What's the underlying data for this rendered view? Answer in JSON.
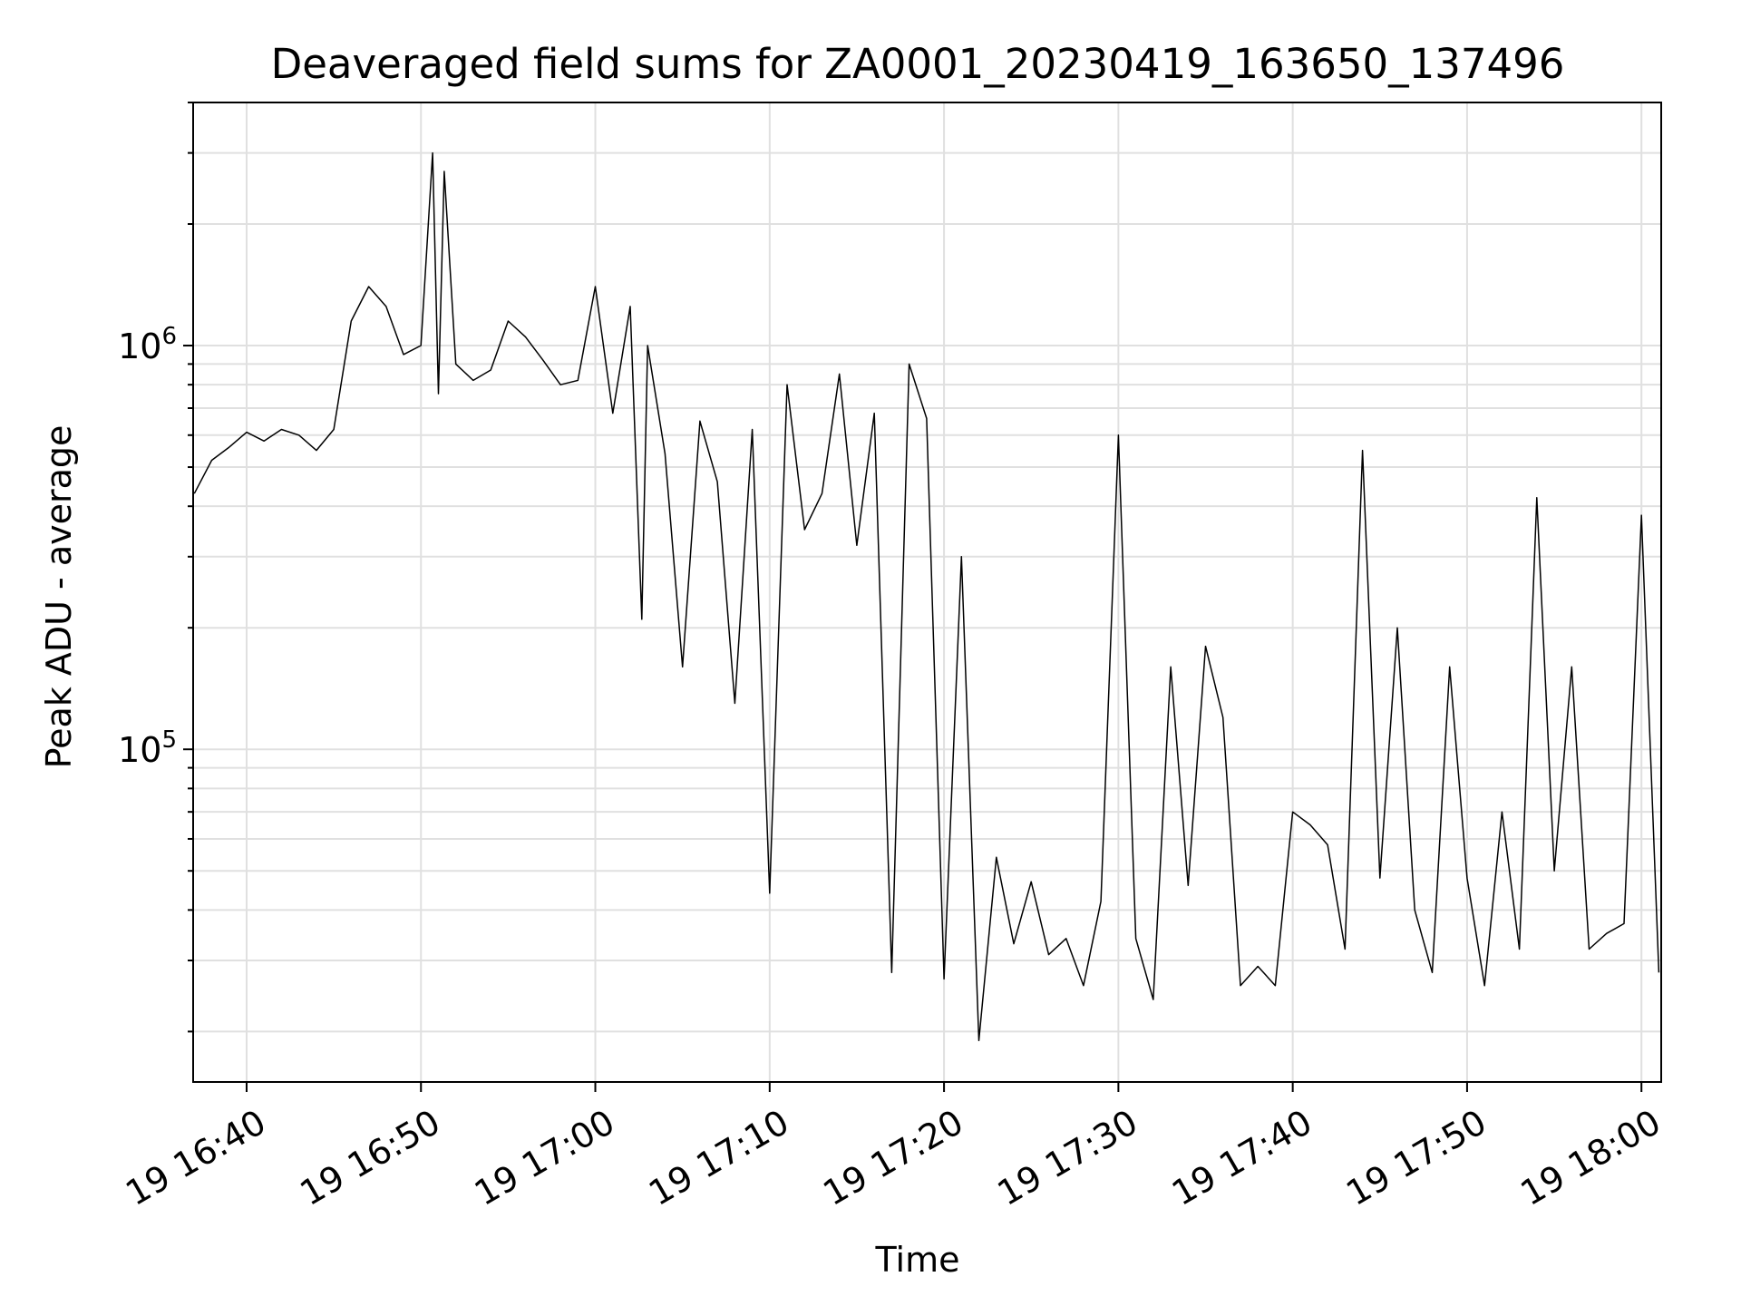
{
  "chart_data": {
    "type": "line",
    "title": "Deaveraged field sums for ZA0001_20230419_163650_137496",
    "xlabel": "Time",
    "ylabel": "Peak ADU - average",
    "yscale": "log",
    "xlim": [
      "2023-04-19 16:36:56",
      "2023-04-19 18:01:08"
    ],
    "ylim": [
      15000,
      4000000
    ],
    "grid": true,
    "line_color": "#000000",
    "grid_color": "#e0e0e0",
    "x_ticks": [
      {
        "value": "2023-04-19 16:40",
        "label": "19 16:40"
      },
      {
        "value": "2023-04-19 16:50",
        "label": "19 16:50"
      },
      {
        "value": "2023-04-19 17:00",
        "label": "19 17:00"
      },
      {
        "value": "2023-04-19 17:10",
        "label": "19 17:10"
      },
      {
        "value": "2023-04-19 17:20",
        "label": "19 17:20"
      },
      {
        "value": "2023-04-19 17:30",
        "label": "19 17:30"
      },
      {
        "value": "2023-04-19 17:40",
        "label": "19 17:40"
      },
      {
        "value": "2023-04-19 17:50",
        "label": "19 17:50"
      },
      {
        "value": "2023-04-19 18:00",
        "label": "19 18:00"
      }
    ],
    "y_ticks": [
      {
        "value": 100000,
        "base": "10",
        "exp": "5"
      },
      {
        "value": 1000000,
        "base": "10",
        "exp": "6"
      }
    ],
    "series": [
      {
        "x": [
          "2023-04-19 16:37:00",
          "2023-04-19 16:38:00",
          "2023-04-19 16:39:00",
          "2023-04-19 16:40:00",
          "2023-04-19 16:41:00",
          "2023-04-19 16:42:00",
          "2023-04-19 16:43:00",
          "2023-04-19 16:44:00",
          "2023-04-19 16:45:00",
          "2023-04-19 16:46:00",
          "2023-04-19 16:47:00",
          "2023-04-19 16:48:00",
          "2023-04-19 16:49:00",
          "2023-04-19 16:50:00",
          "2023-04-19 16:50:40",
          "2023-04-19 16:51:00",
          "2023-04-19 16:51:20",
          "2023-04-19 16:52:00",
          "2023-04-19 16:53:00",
          "2023-04-19 16:54:00",
          "2023-04-19 16:55:00",
          "2023-04-19 16:56:00",
          "2023-04-19 16:57:00",
          "2023-04-19 16:58:00",
          "2023-04-19 16:59:00",
          "2023-04-19 17:00:00",
          "2023-04-19 17:01:00",
          "2023-04-19 17:02:00",
          "2023-04-19 17:02:40",
          "2023-04-19 17:03:00",
          "2023-04-19 17:04:00",
          "2023-04-19 17:05:00",
          "2023-04-19 17:06:00",
          "2023-04-19 17:07:00",
          "2023-04-19 17:08:00",
          "2023-04-19 17:09:00",
          "2023-04-19 17:10:00",
          "2023-04-19 17:11:00",
          "2023-04-19 17:12:00",
          "2023-04-19 17:13:00",
          "2023-04-19 17:14:00",
          "2023-04-19 17:15:00",
          "2023-04-19 17:16:00",
          "2023-04-19 17:17:00",
          "2023-04-19 17:18:00",
          "2023-04-19 17:19:00",
          "2023-04-19 17:20:00",
          "2023-04-19 17:21:00",
          "2023-04-19 17:22:00",
          "2023-04-19 17:23:00",
          "2023-04-19 17:24:00",
          "2023-04-19 17:25:00",
          "2023-04-19 17:26:00",
          "2023-04-19 17:27:00",
          "2023-04-19 17:28:00",
          "2023-04-19 17:29:00",
          "2023-04-19 17:30:00",
          "2023-04-19 17:31:00",
          "2023-04-19 17:32:00",
          "2023-04-19 17:33:00",
          "2023-04-19 17:34:00",
          "2023-04-19 17:35:00",
          "2023-04-19 17:36:00",
          "2023-04-19 17:37:00",
          "2023-04-19 17:38:00",
          "2023-04-19 17:39:00",
          "2023-04-19 17:40:00",
          "2023-04-19 17:41:00",
          "2023-04-19 17:42:00",
          "2023-04-19 17:43:00",
          "2023-04-19 17:44:00",
          "2023-04-19 17:45:00",
          "2023-04-19 17:46:00",
          "2023-04-19 17:47:00",
          "2023-04-19 17:48:00",
          "2023-04-19 17:49:00",
          "2023-04-19 17:50:00",
          "2023-04-19 17:51:00",
          "2023-04-19 17:52:00",
          "2023-04-19 17:53:00",
          "2023-04-19 17:54:00",
          "2023-04-19 17:55:00",
          "2023-04-19 17:56:00",
          "2023-04-19 17:57:00",
          "2023-04-19 17:58:00",
          "2023-04-19 17:59:00",
          "2023-04-19 18:00:00",
          "2023-04-19 18:01:00"
        ],
        "y": [
          430000,
          520000,
          560000,
          610000,
          580000,
          620000,
          600000,
          550000,
          620000,
          1150000,
          1400000,
          1250000,
          950000,
          1000000,
          3000000,
          760000,
          2700000,
          900000,
          820000,
          870000,
          1150000,
          1050000,
          920000,
          800000,
          820000,
          1400000,
          680000,
          1250000,
          210000,
          1000000,
          540000,
          160000,
          650000,
          460000,
          130000,
          620000,
          44000,
          800000,
          350000,
          430000,
          850000,
          320000,
          680000,
          28000,
          900000,
          660000,
          27000,
          300000,
          19000,
          54000,
          33000,
          47000,
          31000,
          34000,
          26000,
          42000,
          600000,
          34000,
          24000,
          160000,
          46000,
          180000,
          120000,
          26000,
          29000,
          26000,
          70000,
          65000,
          58000,
          32000,
          550000,
          48000,
          200000,
          40000,
          28000,
          160000,
          48000,
          26000,
          70000,
          32000,
          420000,
          50000,
          160000,
          32000,
          35000,
          37000,
          380000,
          28000
        ]
      }
    ]
  }
}
